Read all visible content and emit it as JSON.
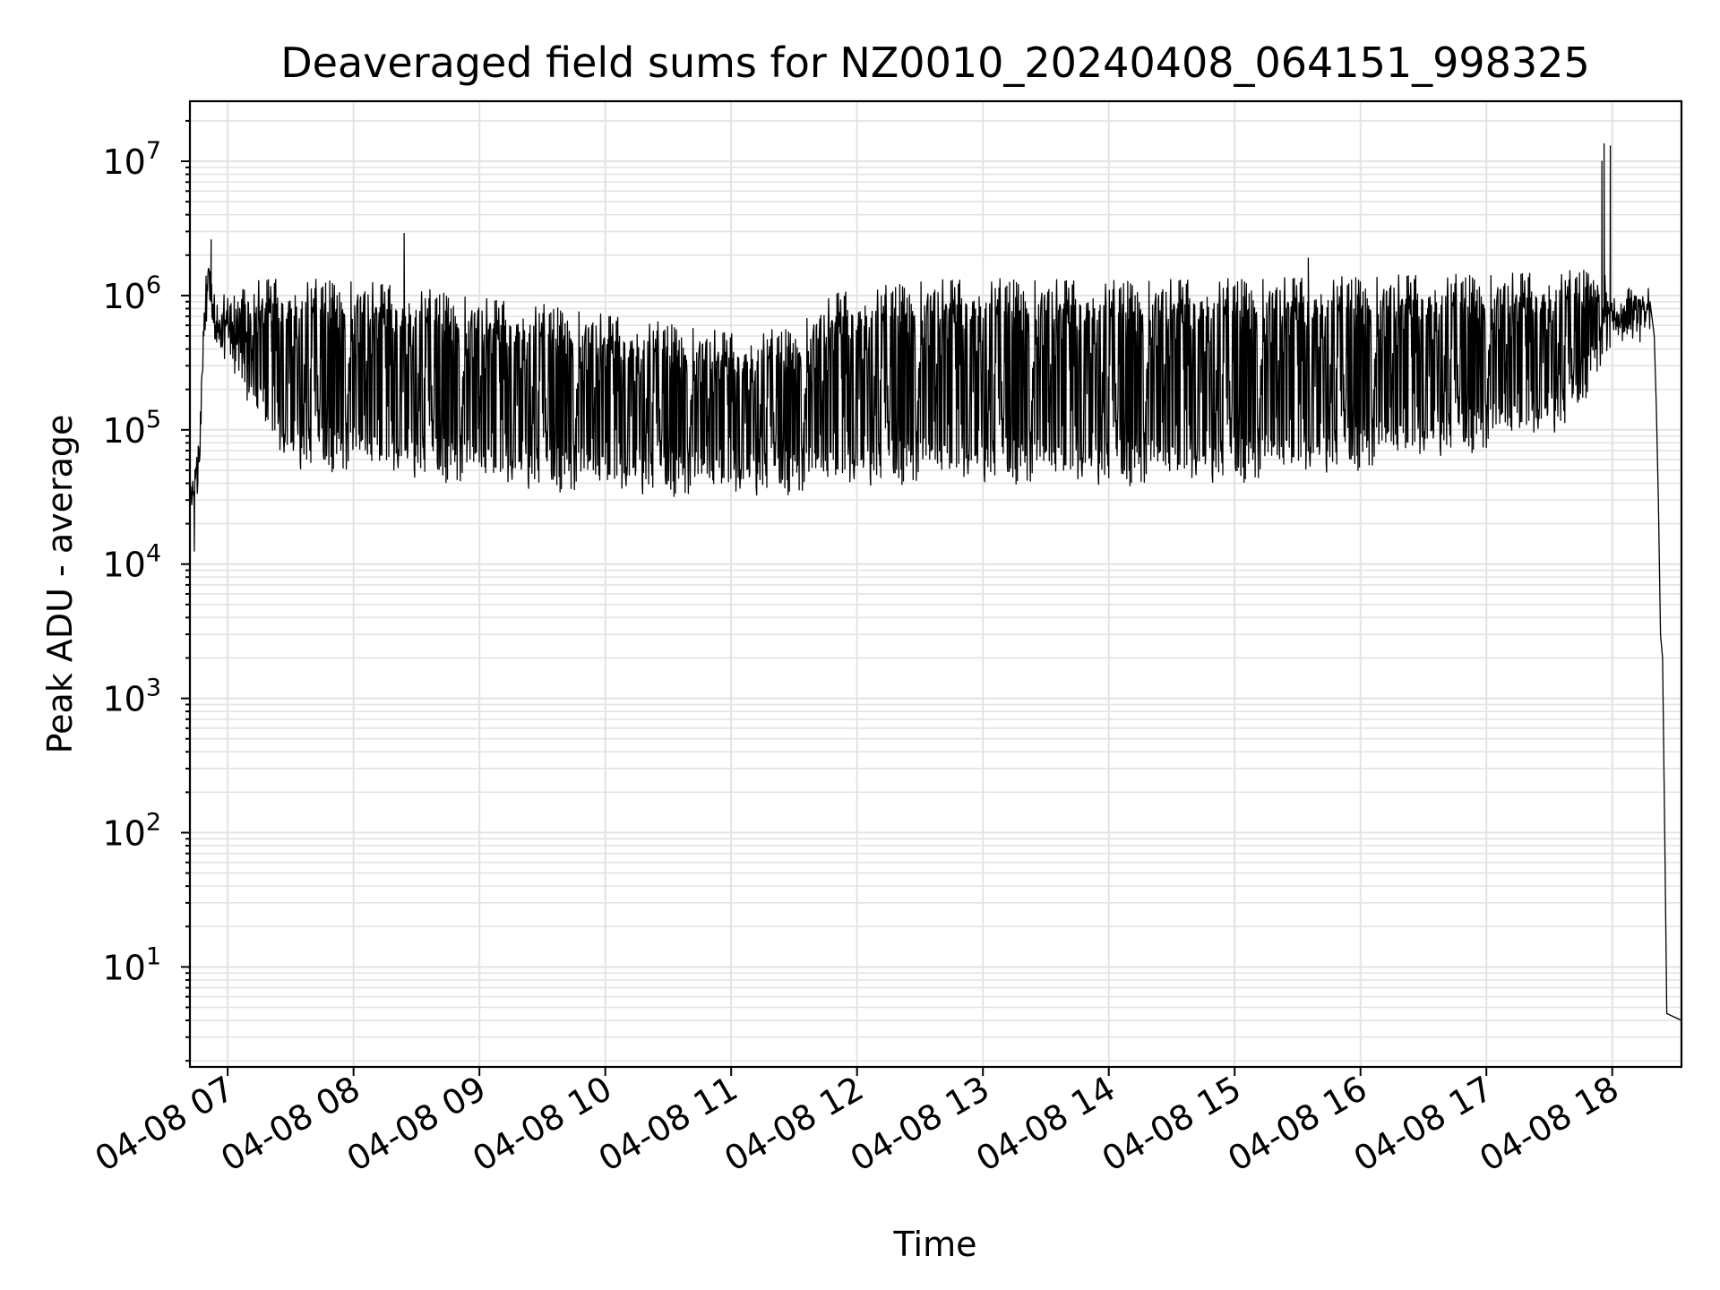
{
  "chart_data": {
    "type": "line",
    "title": "Deaveraged field sums for NZ0010_20240408_064151_998325",
    "xlabel": "Time",
    "ylabel": "Peak ADU - average",
    "yscale": "log",
    "ylim": [
      1.8,
      28000000
    ],
    "xlim": [
      "2024-04-08 06:42",
      "2024-04-08 18:33"
    ],
    "grid": true,
    "line_color": "#000000",
    "grid_color": "#e3e3e3",
    "x_tick_labels": [
      "04-08 07",
      "04-08 08",
      "04-08 09",
      "04-08 10",
      "04-08 11",
      "04-08 12",
      "04-08 13",
      "04-08 14",
      "04-08 15",
      "04-08 16",
      "04-08 17",
      "04-08 18"
    ],
    "x_ticks": [
      "2024-04-08 07:00",
      "2024-04-08 08:00",
      "2024-04-08 09:00",
      "2024-04-08 10:00",
      "2024-04-08 11:00",
      "2024-04-08 12:00",
      "2024-04-08 13:00",
      "2024-04-08 14:00",
      "2024-04-08 15:00",
      "2024-04-08 16:00",
      "2024-04-08 17:00",
      "2024-04-08 18:00"
    ],
    "y_tick_labels": [
      {
        "base": "10",
        "exp": "1"
      },
      {
        "base": "10",
        "exp": "2"
      },
      {
        "base": "10",
        "exp": "3"
      },
      {
        "base": "10",
        "exp": "4"
      },
      {
        "base": "10",
        "exp": "5"
      },
      {
        "base": "10",
        "exp": "6"
      },
      {
        "base": "10",
        "exp": "7"
      }
    ],
    "y_ticks": [
      10,
      100,
      1000,
      10000,
      100000,
      1000000,
      10000000
    ],
    "envelope": [
      {
        "t": "2024-04-08 06:42",
        "low": 25000,
        "high": 32000
      },
      {
        "t": "2024-04-08 06:46",
        "low": 28000,
        "high": 80000
      },
      {
        "t": "2024-04-08 06:49",
        "low": 400000,
        "high": 1200000
      },
      {
        "t": "2024-04-08 06:51",
        "low": 1000000,
        "high": 2000000
      },
      {
        "t": "2024-04-08 06:54",
        "low": 400000,
        "high": 1100000
      },
      {
        "t": "2024-04-08 07:00",
        "low": 300000,
        "high": 1000000
      },
      {
        "t": "2024-04-08 07:10",
        "low": 150000,
        "high": 1300000
      },
      {
        "t": "2024-04-08 07:20",
        "low": 80000,
        "high": 1400000
      },
      {
        "t": "2024-04-08 07:30",
        "low": 50000,
        "high": 1400000
      },
      {
        "t": "2024-04-08 08:00",
        "low": 48000,
        "high": 1350000
      },
      {
        "t": "2024-04-08 08:30",
        "low": 43000,
        "high": 1200000
      },
      {
        "t": "2024-04-08 09:00",
        "low": 38000,
        "high": 1000000
      },
      {
        "t": "2024-04-08 09:30",
        "low": 35000,
        "high": 900000
      },
      {
        "t": "2024-04-08 10:00",
        "low": 33000,
        "high": 750000
      },
      {
        "t": "2024-04-08 10:30",
        "low": 32000,
        "high": 650000
      },
      {
        "t": "2024-04-08 11:00",
        "low": 31000,
        "high": 550000
      },
      {
        "t": "2024-04-08 11:30",
        "low": 33000,
        "high": 600000
      },
      {
        "t": "2024-04-08 11:50",
        "low": 36000,
        "high": 1100000
      },
      {
        "t": "2024-04-08 12:30",
        "low": 40000,
        "high": 1350000
      },
      {
        "t": "2024-04-08 13:00",
        "low": 40000,
        "high": 1400000
      },
      {
        "t": "2024-04-08 14:00",
        "low": 38000,
        "high": 1350000
      },
      {
        "t": "2024-04-08 15:00",
        "low": 40000,
        "high": 1400000
      },
      {
        "t": "2024-04-08 16:00",
        "low": 50000,
        "high": 1450000
      },
      {
        "t": "2024-04-08 16:30",
        "low": 60000,
        "high": 1500000
      },
      {
        "t": "2024-04-08 17:00",
        "low": 70000,
        "high": 1500000
      },
      {
        "t": "2024-04-08 17:40",
        "low": 100000,
        "high": 1600000
      },
      {
        "t": "2024-04-08 17:55",
        "low": 300000,
        "high": 1700000
      },
      {
        "t": "2024-04-08 18:03",
        "low": 400000,
        "high": 900000
      },
      {
        "t": "2024-04-08 18:10",
        "low": 700000,
        "high": 1050000
      },
      {
        "t": "2024-04-08 18:18",
        "low": 700000,
        "high": 900000
      }
    ],
    "spikes": [
      {
        "t": "2024-04-08 06:52",
        "value": 2600000
      },
      {
        "t": "2024-04-08 08:24",
        "value": 2900000
      },
      {
        "t": "2024-04-08 15:35",
        "value": 1900000
      },
      {
        "t": "2024-04-08 17:55",
        "value": 10000000
      },
      {
        "t": "2024-04-08 17:56",
        "value": 13500000
      },
      {
        "t": "2024-04-08 17:59",
        "value": 13000000
      },
      {
        "t": "2024-04-08 06:44",
        "value": 12500
      }
    ],
    "tail": [
      {
        "t": "2024-04-08 18:18",
        "value": 900000
      },
      {
        "t": "2024-04-08 18:20",
        "value": 500000
      },
      {
        "t": "2024-04-08 18:21",
        "value": 150000
      },
      {
        "t": "2024-04-08 18:22",
        "value": 30000
      },
      {
        "t": "2024-04-08 18:23",
        "value": 3000
      },
      {
        "t": "2024-04-08 18:24",
        "value": 2000
      },
      {
        "t": "2024-04-08 18:25",
        "value": 100
      },
      {
        "t": "2024-04-08 18:26",
        "value": 4.5
      },
      {
        "t": "2024-04-08 18:33",
        "value": 4
      }
    ]
  }
}
